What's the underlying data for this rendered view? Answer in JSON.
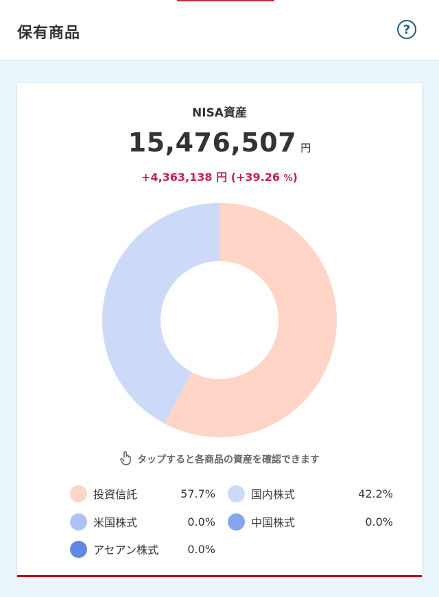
{
  "header": {
    "title": "保有商品",
    "help_icon": "help-circle-icon",
    "help_label": "?"
  },
  "summary": {
    "label": "NISA資産",
    "total_value": "15,476,507",
    "total_unit": "円",
    "gain_value": "+4,363,138",
    "gain_unit": "円",
    "gain_open": "(",
    "gain_percent": "+39.26",
    "gain_percent_unit": "%",
    "gain_close": ")"
  },
  "hint": {
    "icon": "tap-hand-icon",
    "text": "タップすると各商品の資産を確認できます"
  },
  "chart_data": {
    "type": "pie",
    "categories": [
      "投資信託",
      "国内株式",
      "米国株式",
      "中国株式",
      "アセアン株式"
    ],
    "values": [
      57.7,
      42.2,
      0.0,
      0.0,
      0.0
    ],
    "colors": [
      "#ffd5c8",
      "#cdd9f9",
      "#aec3f5",
      "#85a5ee",
      "#6288e6"
    ]
  },
  "legend": [
    {
      "label": "投資信託",
      "value": "57.7%",
      "color": "#ffd5c8"
    },
    {
      "label": "国内株式",
      "value": "42.2%",
      "color": "#cdd9f9"
    },
    {
      "label": "米国株式",
      "value": "0.0%",
      "color": "#aec3f5"
    },
    {
      "label": "中国株式",
      "value": "0.0%",
      "color": "#85a5ee"
    },
    {
      "label": "アセアン株式",
      "value": "0.0%",
      "color": "#6288e6"
    }
  ]
}
